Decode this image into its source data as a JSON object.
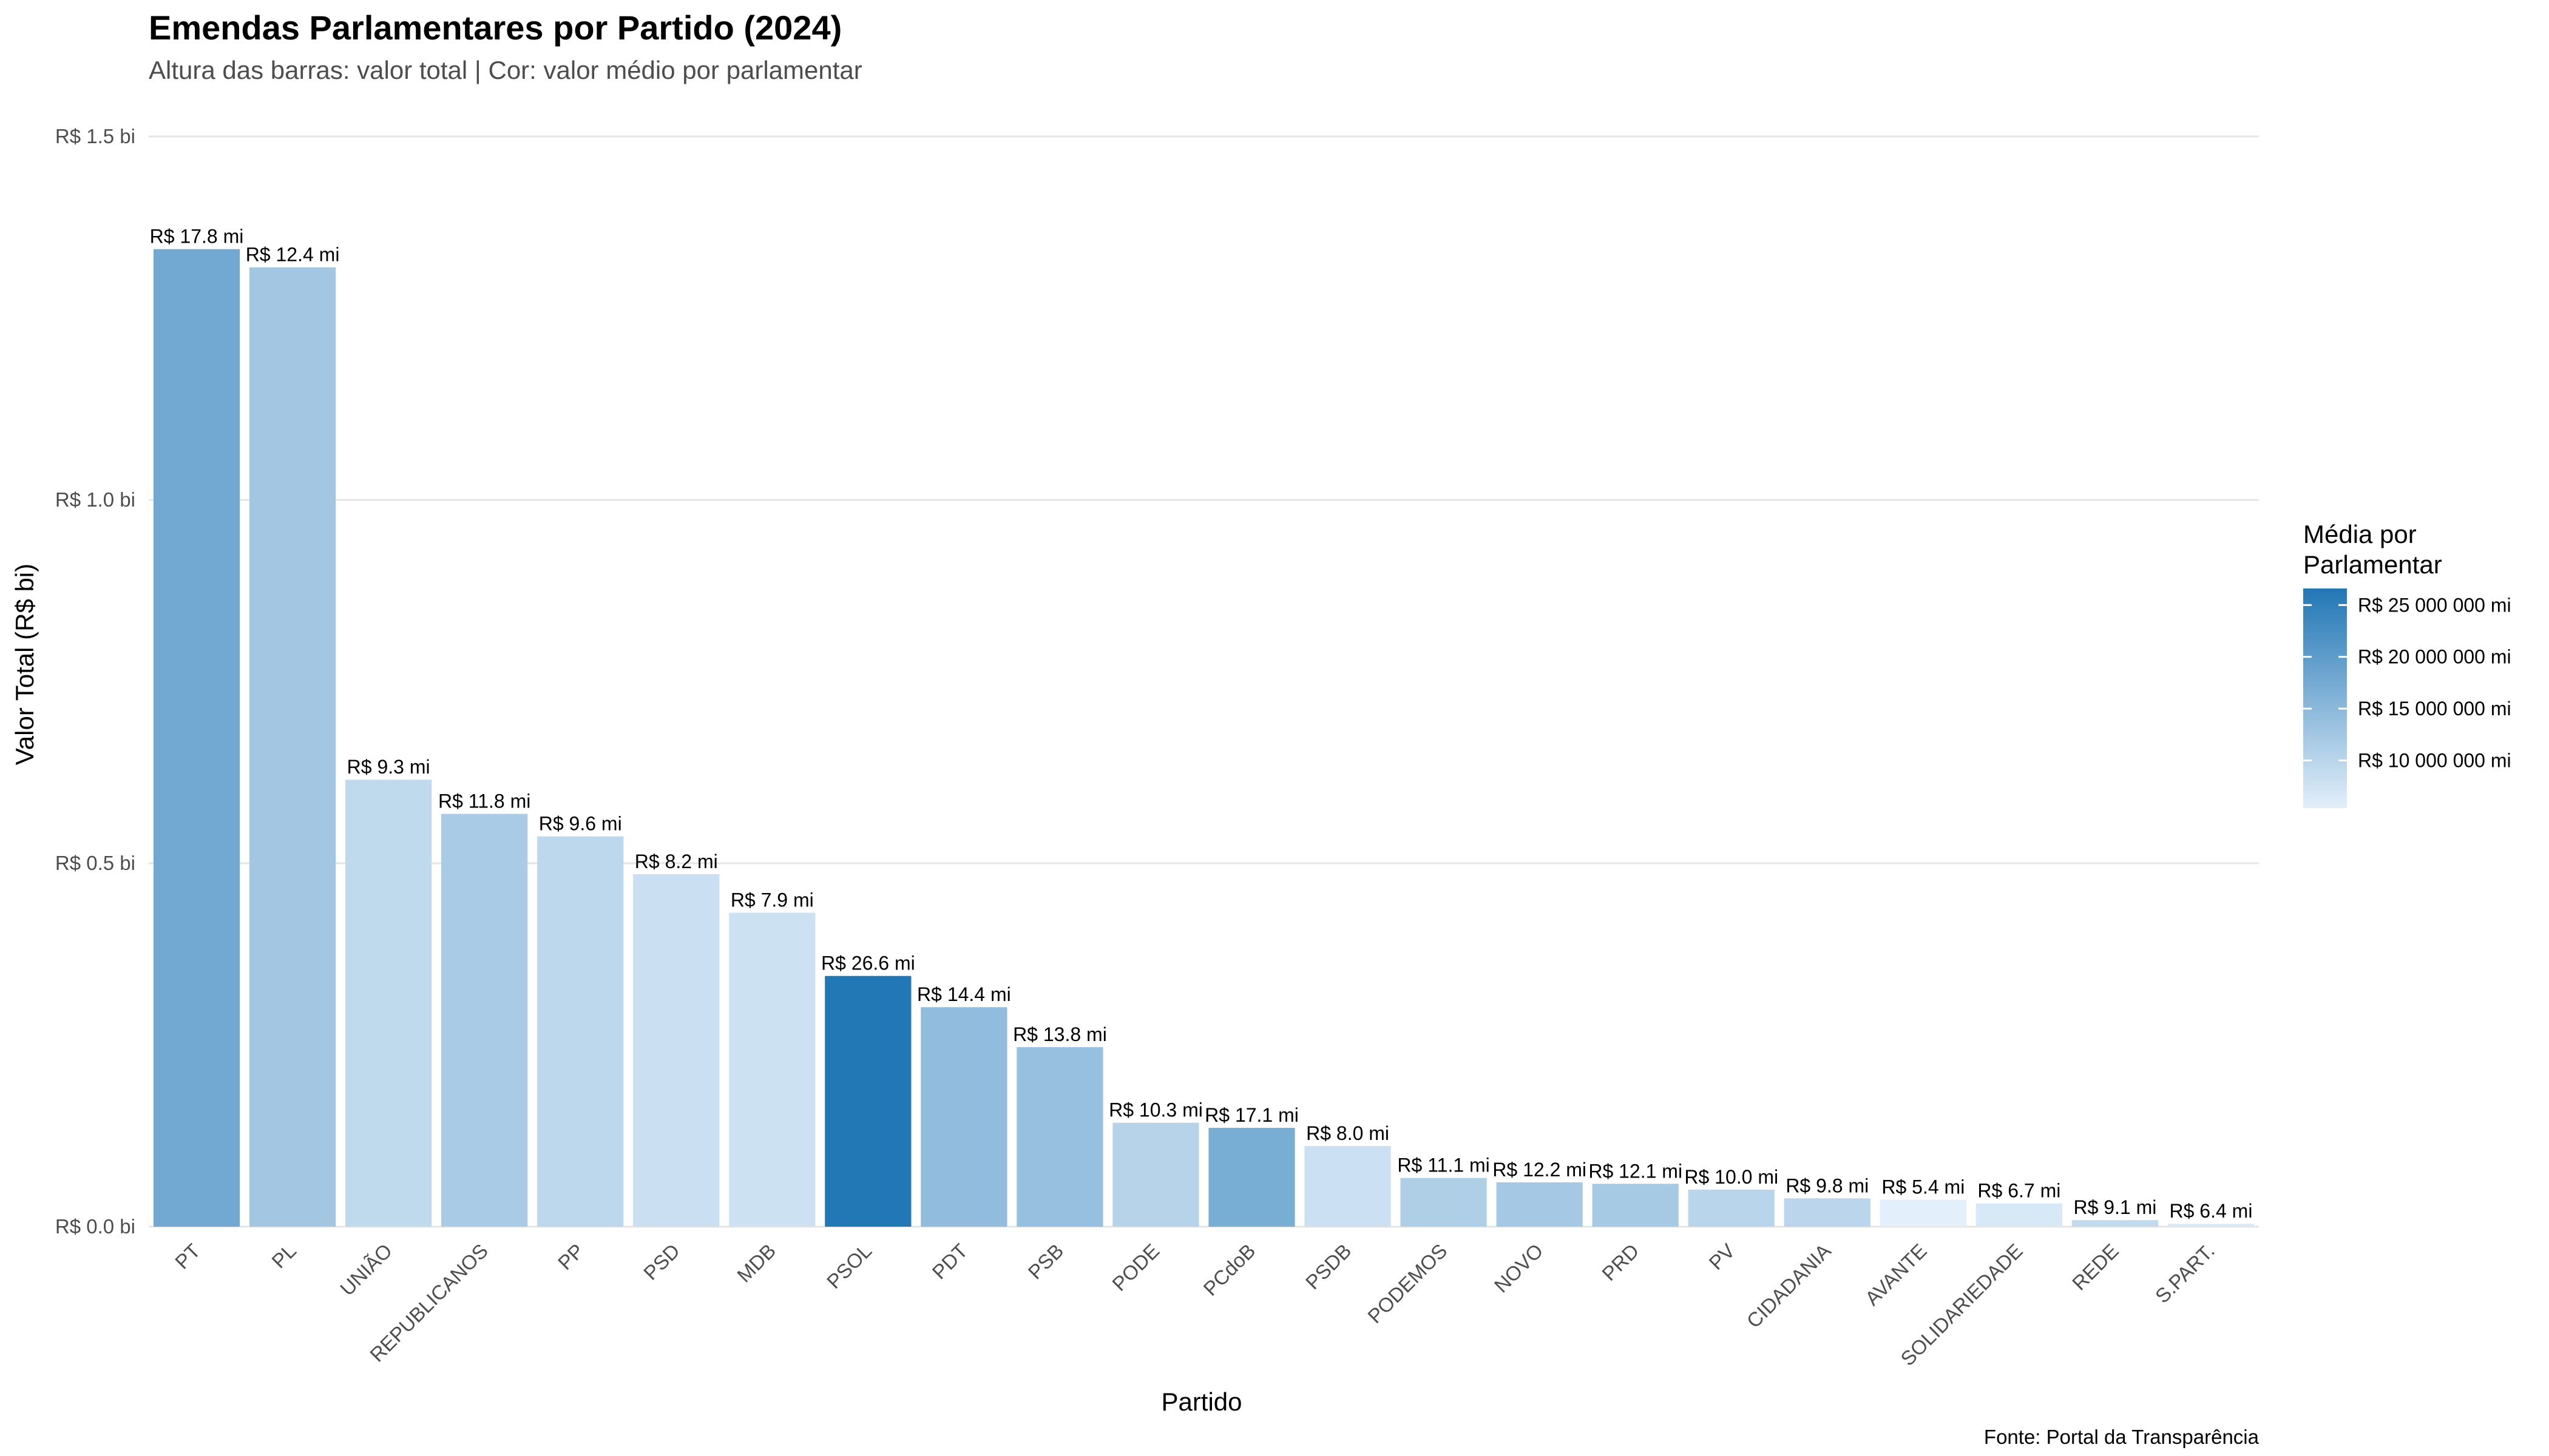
{
  "chart_data": {
    "type": "bar",
    "title": "Emendas Parlamentares por Partido (2024)",
    "subtitle": "Altura das barras: valor total | Cor: valor médio por parlamentar",
    "xlabel": "Partido",
    "ylabel": "Valor Total (R$ bi)",
    "caption": "Fonte: Portal da Transparência",
    "ylim": [
      0,
      1.5
    ],
    "grid": true,
    "y_ticks": [
      {
        "value": 0.0,
        "label": "R$ 0.0 bi"
      },
      {
        "value": 0.5,
        "label": "R$ 0.5 bi"
      },
      {
        "value": 1.0,
        "label": "R$ 1.0 bi"
      },
      {
        "value": 1.5,
        "label": "R$ 1.5 bi"
      }
    ],
    "categories": [
      "PT",
      "PL",
      "UNIÃO",
      "REPUBLICANOS",
      "PP",
      "PSD",
      "MDB",
      "PSOL",
      "PDT",
      "PSB",
      "PODE",
      "PCdoB",
      "PSDB",
      "PODEMOS",
      "NOVO",
      "PRD",
      "PV",
      "CIDADANIA",
      "AVANTE",
      "SOLIDARIEDADE",
      "REDE",
      "S.PART."
    ],
    "values": [
      1.345,
      1.32,
      0.615,
      0.568,
      0.537,
      0.485,
      0.432,
      0.345,
      0.302,
      0.247,
      0.143,
      0.136,
      0.111,
      0.067,
      0.061,
      0.059,
      0.051,
      0.039,
      0.037,
      0.032,
      0.009,
      0.004
    ],
    "color_values": [
      17.8,
      12.4,
      9.3,
      11.8,
      9.6,
      8.2,
      7.9,
      26.6,
      14.4,
      13.8,
      10.3,
      17.1,
      8.0,
      11.1,
      12.2,
      12.1,
      10.0,
      9.8,
      5.4,
      6.7,
      9.1,
      6.4
    ],
    "bar_labels": [
      "R$ 17.8 mi",
      "R$ 12.4 mi",
      "R$ 9.3 mi",
      "R$ 11.8 mi",
      "R$ 9.6 mi",
      "R$ 8.2 mi",
      "R$ 7.9 mi",
      "R$ 26.6 mi",
      "R$ 14.4 mi",
      "R$ 13.8 mi",
      "R$ 10.3 mi",
      "R$ 17.1 mi",
      "R$ 8.0 mi",
      "R$ 11.1 mi",
      "R$ 12.2 mi",
      "R$ 12.1 mi",
      "R$ 10.0 mi",
      "R$ 9.8 mi",
      "R$ 5.4 mi",
      "R$ 6.7 mi",
      "R$ 9.1 mi",
      "R$ 6.4 mi"
    ],
    "legend": {
      "title_line1": "Média por",
      "title_line2": "Parlamentar",
      "position": "right",
      "range": [
        5.4,
        26.6
      ],
      "color_low": "#e3effa",
      "color_high": "#2277b5",
      "breaks": [
        {
          "value": 25,
          "label": "R$ 25 000 000 mi"
        },
        {
          "value": 20,
          "label": "R$ 20 000 000 mi"
        },
        {
          "value": 15,
          "label": "R$ 15 000 000 mi"
        },
        {
          "value": 10,
          "label": "R$ 10 000 000 mi"
        }
      ]
    }
  }
}
